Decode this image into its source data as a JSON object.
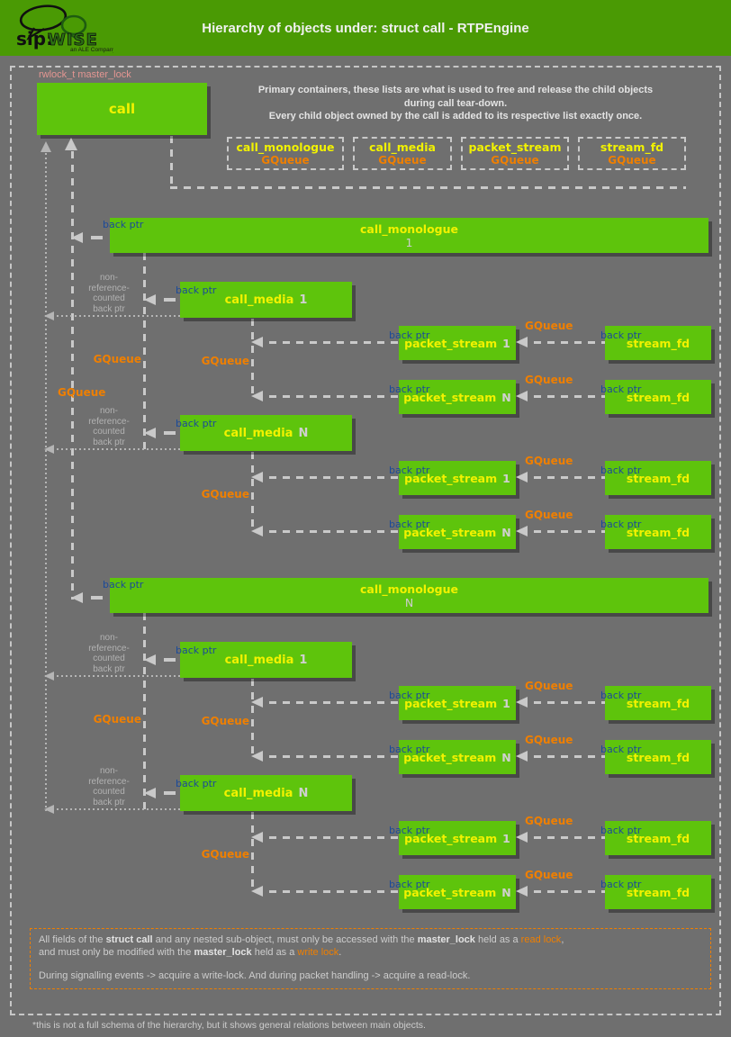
{
  "header": {
    "title": "Hierarchy of objects under: struct call - RTPEngine",
    "brand": "sip:",
    "brand2": "WISE",
    "brand_tagline": "an ALE Company"
  },
  "colors": {
    "bg": "#6f6f6f",
    "header-green": "#4a9a04",
    "box-green": "#5ec40c",
    "yellow": "#f2f200",
    "orange": "#ef7f00",
    "blue": "#1b4a99",
    "salmon": "#e49692",
    "line": "#c9c9c9",
    "dot": "#b5b5b5"
  },
  "diagram": {
    "lock_label": "rwlock_t master_lock",
    "call_label": "call",
    "intro": [
      "Primary containers, these lists are what is used to free and release the child objects",
      "during call tear-down.",
      "Every child object owned by the call is added to its respective list exactly once."
    ],
    "containers": [
      {
        "name": "call_monologue",
        "type": "GQueue"
      },
      {
        "name": "call_media",
        "type": "GQueue"
      },
      {
        "name": "packet_stream",
        "type": "GQueue"
      },
      {
        "name": "stream_fd",
        "type": "GQueue"
      }
    ],
    "labels": {
      "back_ptr": "back ptr",
      "gqueue": "GQueue",
      "non_ref": "non-\nreference-\ncounted\nback ptr"
    },
    "blocks": [
      {
        "monologue": {
          "name": "call_monologue",
          "index": "1"
        },
        "medias": [
          {
            "name": "call_media",
            "index": "1",
            "streams": [
              {
                "name": "packet_stream",
                "index": "1",
                "fd": "stream_fd"
              },
              {
                "name": "packet_stream",
                "index": "N",
                "fd": "stream_fd"
              }
            ]
          },
          {
            "name": "call_media",
            "index": "N",
            "streams": [
              {
                "name": "packet_stream",
                "index": "1",
                "fd": "stream_fd"
              },
              {
                "name": "packet_stream",
                "index": "N",
                "fd": "stream_fd"
              }
            ]
          }
        ]
      },
      {
        "monologue": {
          "name": "call_monologue",
          "index": "N"
        },
        "medias": [
          {
            "name": "call_media",
            "index": "1",
            "streams": [
              {
                "name": "packet_stream",
                "index": "1",
                "fd": "stream_fd"
              },
              {
                "name": "packet_stream",
                "index": "N",
                "fd": "stream_fd"
              }
            ]
          },
          {
            "name": "call_media",
            "index": "N",
            "streams": [
              {
                "name": "packet_stream",
                "index": "1",
                "fd": "stream_fd"
              },
              {
                "name": "packet_stream",
                "index": "N",
                "fd": "stream_fd"
              }
            ]
          }
        ]
      }
    ]
  },
  "notes": {
    "line1": [
      "All fields of the ",
      "struct call",
      " and any nested sub-object, must only be accessed with the ",
      "master_lock",
      " held as a ",
      "read lock",
      ","
    ],
    "line2": [
      "and must only be modified with the ",
      "master_lock",
      " held as a ",
      "write lock",
      "."
    ],
    "line3": "During signalling events -> acquire a write-lock. And during packet handling -> acquire a read-lock."
  },
  "footnote": "*this is not a full schema of the hierarchy, but it shows general relations between main objects."
}
